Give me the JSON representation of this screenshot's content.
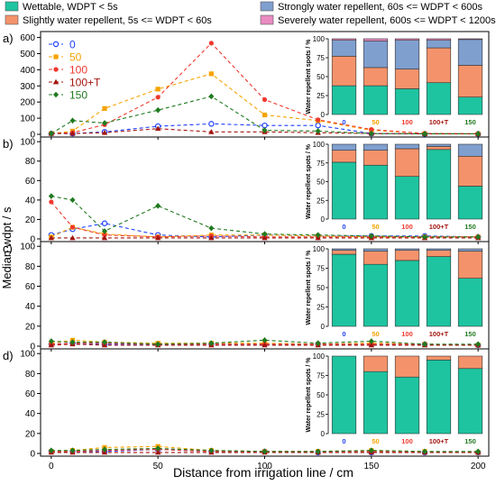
{
  "figure": {
    "shared_xlabel": "Distance from irrigation line / cm",
    "ylabel": "Median wdpt / s",
    "inset_ylabel": "Water repellent spots / %",
    "legend_top": [
      {
        "label": "Wettable, WDPT < 5s",
        "color": "#1ec4a0"
      },
      {
        "label": "Strongly water repellent, 60s <= WDPT < 600s",
        "color": "#7f9fcf"
      },
      {
        "label": "Slightly water repellent, 5s <= WDPT < 60s",
        "color": "#f4936b"
      },
      {
        "label": "Severely water repellent, 600s <= WDPT < 1200s",
        "color": "#e98bc2"
      }
    ],
    "treatments": [
      {
        "label": "0",
        "color": "#1f3fff",
        "marker": "circle-open"
      },
      {
        "label": "50",
        "color": "#f5a300",
        "marker": "square"
      },
      {
        "label": "100",
        "color": "#f0382d",
        "marker": "circle"
      },
      {
        "label": "100+T",
        "color": "#a3140f",
        "marker": "triangle"
      },
      {
        "label": "150",
        "color": "#207a20",
        "marker": "diamond"
      }
    ]
  },
  "chart_data": [
    {
      "type": "line",
      "panel": "a)",
      "xlabel": "",
      "ylabel": "Median wdpt / s",
      "x": [
        0,
        10,
        25,
        50,
        75,
        100,
        125,
        150,
        175,
        200
      ],
      "xlim": [
        -5,
        205
      ],
      "ylim": [
        0,
        620
      ],
      "yticks": [
        0,
        100,
        200,
        300,
        400,
        500,
        600
      ],
      "series": [
        {
          "name": "0",
          "values": [
            5,
            5,
            15,
            50,
            65,
            55,
            55,
            5,
            3,
            3
          ]
        },
        {
          "name": "50",
          "values": [
            5,
            20,
            160,
            280,
            375,
            120,
            85,
            25,
            5,
            3
          ]
        },
        {
          "name": "100",
          "values": [
            5,
            10,
            60,
            230,
            565,
            215,
            90,
            30,
            5,
            3
          ]
        },
        {
          "name": "100+T",
          "values": [
            5,
            5,
            10,
            35,
            15,
            15,
            10,
            5,
            3,
            3
          ]
        },
        {
          "name": "150",
          "values": [
            5,
            85,
            70,
            150,
            235,
            25,
            20,
            5,
            3,
            3
          ]
        }
      ],
      "inset": {
        "type": "bar",
        "stacked": true,
        "categories": [
          "0",
          "50",
          "100",
          "100+T",
          "150"
        ],
        "ylim": [
          0,
          100
        ],
        "yticks": [
          0,
          25,
          50,
          75,
          100
        ],
        "series": [
          {
            "name": "Wettable, WDPT < 5s",
            "values": [
              38,
              38,
              34,
              42,
              23
            ]
          },
          {
            "name": "Slightly water repellent, 5s <= WDPT < 60s",
            "values": [
              39,
              24,
              26,
              46,
              42
            ]
          },
          {
            "name": "Strongly water repellent, 60s <= WDPT < 600s",
            "values": [
              21,
              35,
              38,
              10,
              34
            ]
          },
          {
            "name": "Severely water repellent, 600s <= WDPT < 1200s",
            "values": [
              2,
              3,
              2,
              2,
              1
            ]
          }
        ]
      }
    },
    {
      "type": "line",
      "panel": "b)",
      "xlabel": "",
      "ylabel": "Median wdpt / s",
      "x": [
        0,
        10,
        25,
        50,
        75,
        100,
        125,
        150,
        175,
        200
      ],
      "xlim": [
        -5,
        205
      ],
      "ylim": [
        0,
        102
      ],
      "yticks": [
        0,
        20,
        40,
        60,
        80,
        100
      ],
      "series": [
        {
          "name": "0",
          "values": [
            4,
            10,
            16,
            4,
            2,
            4,
            3,
            3,
            3,
            2
          ]
        },
        {
          "name": "50",
          "values": [
            2,
            12,
            5,
            2,
            4,
            4,
            3,
            2,
            2,
            2
          ]
        },
        {
          "name": "100",
          "values": [
            38,
            12,
            4,
            2,
            3,
            2,
            2,
            2,
            2,
            2
          ]
        },
        {
          "name": "100+T",
          "values": [
            1,
            1,
            1,
            1,
            1,
            1,
            1,
            1,
            1,
            1
          ]
        },
        {
          "name": "150",
          "values": [
            44,
            40,
            8,
            34,
            11,
            5,
            4,
            3,
            2,
            2
          ]
        }
      ],
      "inset": {
        "type": "bar",
        "stacked": true,
        "categories": [
          "0",
          "50",
          "100",
          "100+T",
          "150"
        ],
        "ylim": [
          0,
          100
        ],
        "yticks": [
          0,
          25,
          50,
          75,
          100
        ],
        "series": [
          {
            "name": "Wettable, WDPT < 5s",
            "values": [
              76,
              72,
              57,
              93,
              44
            ]
          },
          {
            "name": "Slightly water repellent, 5s <= WDPT < 60s",
            "values": [
              16,
              20,
              37,
              4,
              40
            ]
          },
          {
            "name": "Strongly water repellent, 60s <= WDPT < 600s",
            "values": [
              8,
              8,
              6,
              3,
              16
            ]
          },
          {
            "name": "Severely water repellent, 600s <= WDPT < 1200s",
            "values": [
              0,
              0,
              0,
              0,
              0
            ]
          }
        ]
      }
    },
    {
      "type": "line",
      "panel": "c)",
      "xlabel": "",
      "ylabel": "Median wdpt / s",
      "x": [
        0,
        10,
        25,
        50,
        75,
        100,
        125,
        150,
        175,
        200
      ],
      "xlim": [
        -5,
        205
      ],
      "ylim": [
        0,
        102
      ],
      "yticks": [
        0,
        20,
        40,
        60,
        80,
        100
      ],
      "series": [
        {
          "name": "0",
          "values": [
            2,
            3,
            2,
            2,
            2,
            2,
            2,
            2,
            2,
            1
          ]
        },
        {
          "name": "50",
          "values": [
            3,
            6,
            4,
            3,
            3,
            3,
            2,
            3,
            2,
            1
          ]
        },
        {
          "name": "100",
          "values": [
            2,
            3,
            3,
            2,
            2,
            2,
            2,
            2,
            2,
            1
          ]
        },
        {
          "name": "100+T",
          "values": [
            1,
            2,
            1,
            1,
            1,
            1,
            1,
            1,
            1,
            1
          ]
        },
        {
          "name": "150",
          "values": [
            5,
            4,
            4,
            2,
            3,
            6,
            3,
            5,
            2,
            2
          ]
        }
      ],
      "inset": {
        "type": "bar",
        "stacked": true,
        "categories": [
          "0",
          "50",
          "100",
          "100+T",
          "150"
        ],
        "ylim": [
          0,
          100
        ],
        "yticks": [
          0,
          25,
          50,
          75,
          100
        ],
        "series": [
          {
            "name": "Wettable, WDPT < 5s",
            "values": [
              93,
              80,
              85,
              90,
              62
            ]
          },
          {
            "name": "Slightly water repellent, 5s <= WDPT < 60s",
            "values": [
              5,
              17,
              13,
              8,
              35
            ]
          },
          {
            "name": "Strongly water repellent, 60s <= WDPT < 600s",
            "values": [
              2,
              3,
              2,
              2,
              3
            ]
          },
          {
            "name": "Severely water repellent, 600s <= WDPT < 1200s",
            "values": [
              0,
              0,
              0,
              0,
              0
            ]
          }
        ]
      }
    },
    {
      "type": "line",
      "panel": "d)",
      "xlabel": "Distance from irrigation line / cm",
      "ylabel": "Median wdpt / s",
      "x": [
        0,
        10,
        25,
        50,
        75,
        100,
        125,
        150,
        175,
        200
      ],
      "xlim": [
        -5,
        205
      ],
      "ylim": [
        0,
        102
      ],
      "yticks": [
        0,
        20,
        40,
        60,
        80,
        100
      ],
      "xticks": [
        0,
        50,
        100,
        150,
        200
      ],
      "series": [
        {
          "name": "0",
          "values": [
            2,
            2,
            2,
            4,
            2,
            2,
            1,
            1,
            1,
            1
          ]
        },
        {
          "name": "50",
          "values": [
            2,
            3,
            6,
            7,
            3,
            2,
            2,
            3,
            2,
            1
          ]
        },
        {
          "name": "100",
          "values": [
            2,
            2,
            3,
            4,
            2,
            2,
            2,
            2,
            1,
            1
          ]
        },
        {
          "name": "100+T",
          "values": [
            1,
            1,
            1,
            1,
            1,
            1,
            1,
            1,
            1,
            1
          ]
        },
        {
          "name": "150",
          "values": [
            3,
            3,
            4,
            5,
            3,
            2,
            2,
            3,
            2,
            2
          ]
        }
      ],
      "inset": {
        "type": "bar",
        "stacked": true,
        "categories": [
          "0",
          "50",
          "100",
          "100+T",
          "150"
        ],
        "ylim": [
          0,
          100
        ],
        "yticks": [
          0,
          25,
          50,
          75,
          100
        ],
        "series": [
          {
            "name": "Wettable, WDPT < 5s",
            "values": [
              100,
              80,
              73,
              95,
              84
            ]
          },
          {
            "name": "Slightly water repellent, 5s <= WDPT < 60s",
            "values": [
              0,
              20,
              27,
              5,
              16
            ]
          },
          {
            "name": "Strongly water repellent, 60s <= WDPT < 600s",
            "values": [
              0,
              0,
              0,
              0,
              0
            ]
          },
          {
            "name": "Severely water repellent, 600s <= WDPT < 1200s",
            "values": [
              0,
              0,
              0,
              0,
              0
            ]
          }
        ]
      }
    }
  ]
}
